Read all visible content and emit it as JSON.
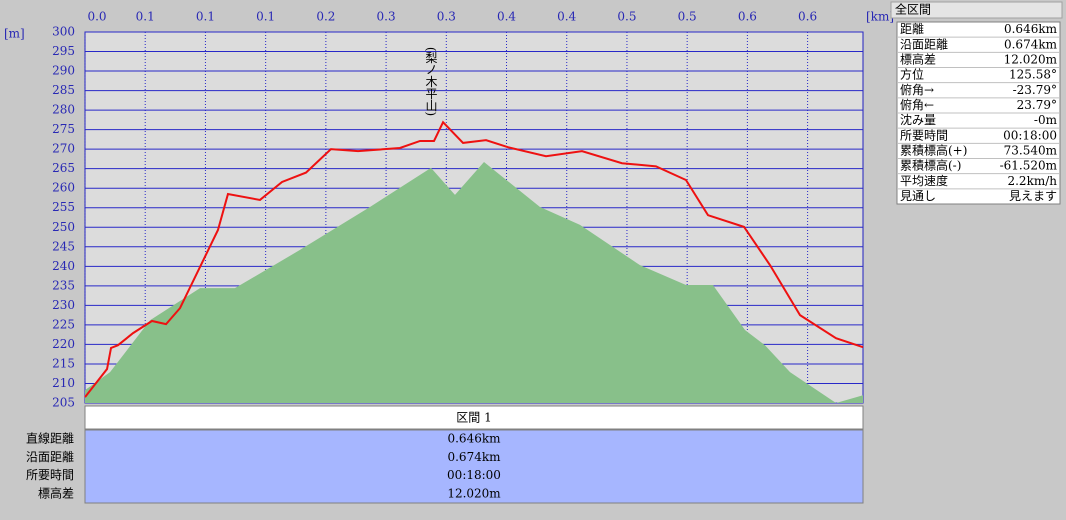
{
  "chart_data": {
    "type": "line",
    "y_unit": "[m]",
    "x_unit": "[km]",
    "annotation": "(梨ノ木平山)",
    "xlim": [
      0,
      0.646
    ],
    "ylim": [
      205,
      300
    ],
    "xticks": [
      {
        "value": 0,
        "label": "0.0"
      },
      {
        "value": 0.05,
        "label": "0.1"
      },
      0.1,
      {
        "value": 0.15,
        "label": "0.1"
      },
      0.2,
      {
        "value": 0.25,
        "label": "0.3"
      },
      0.3,
      {
        "value": 0.35,
        "label": "0.4"
      },
      0.4,
      {
        "value": 0.45,
        "label": "0.5"
      },
      0.5,
      {
        "value": 0.55,
        "label": "0.6"
      },
      0.6
    ],
    "yticks": [
      205,
      210,
      215,
      220,
      225,
      230,
      235,
      240,
      245,
      250,
      255,
      260,
      265,
      270,
      275,
      280,
      285,
      290,
      295,
      300
    ],
    "grid": true,
    "series": [
      {
        "color": "#88c08a",
        "fill": true,
        "x": [
          0,
          0.0208,
          0.054,
          0.0955,
          0.1245,
          0.1785,
          0.2366,
          0.2873,
          0.3072,
          0.3313,
          0.3778,
          0.411,
          0.4608,
          0.499,
          0.5214,
          0.548,
          0.5646,
          0.5854,
          0.6236,
          0.646
        ],
        "values": [
          208.3,
          212.9,
          226.2,
          234.4,
          234.4,
          244.2,
          255.2,
          265.2,
          258.3,
          266.7,
          255.2,
          250.6,
          240.3,
          235.2,
          235.2,
          223.7,
          219.8,
          212.9,
          205,
          207
        ]
      },
      {
        "color": "#ee1111",
        "fill": false,
        "x": [
          0,
          0.0183,
          0.0216,
          0.0274,
          0.0399,
          0.0556,
          0.0673,
          0.0789,
          0.1104,
          0.1187,
          0.1453,
          0.1636,
          0.1835,
          0.2042,
          0.2267,
          0.2615,
          0.2782,
          0.2898,
          0.2973,
          0.3139,
          0.333,
          0.3512,
          0.3828,
          0.4127,
          0.4459,
          0.4741,
          0.499,
          0.5173,
          0.5472,
          0.5688,
          0.5937,
          0.6236,
          0.646
        ],
        "values": [
          206.5,
          213.7,
          219.1,
          219.8,
          222.9,
          226,
          225.2,
          229.3,
          249.3,
          258.5,
          257,
          261.6,
          264,
          270,
          269.5,
          270.3,
          272.1,
          272.1,
          276.9,
          271.6,
          272.3,
          270.5,
          268.2,
          269.5,
          266.4,
          265.6,
          262.1,
          253.1,
          250.1,
          240.3,
          227.5,
          221.6,
          219.3
        ]
      }
    ]
  },
  "segment_table": {
    "header": "区間 1",
    "rows": [
      [
        "直線距離",
        "0.646km"
      ],
      [
        "沿面距離",
        "0.674km"
      ],
      [
        "所要時間",
        "00:18:00"
      ],
      [
        "標高差",
        "12.020m"
      ]
    ]
  },
  "summary": {
    "title": "全区間",
    "rows": [
      [
        "距離",
        "0.646km"
      ],
      [
        "沿面距離",
        "0.674km"
      ],
      [
        "標高差",
        "12.020m"
      ],
      [
        "方位",
        "125.58°"
      ],
      [
        "俯角→",
        "-23.79°"
      ],
      [
        "俯角←",
        "23.79°"
      ],
      [
        "沈み量",
        "-0m"
      ],
      [
        "所要時間",
        "00:18:00"
      ],
      [
        "累積標高(+)",
        "73.540m"
      ],
      [
        "累積標高(-)",
        "-61.520m"
      ],
      [
        "平均速度",
        "2.2km/h"
      ],
      [
        "見通し",
        "見えます"
      ]
    ]
  }
}
